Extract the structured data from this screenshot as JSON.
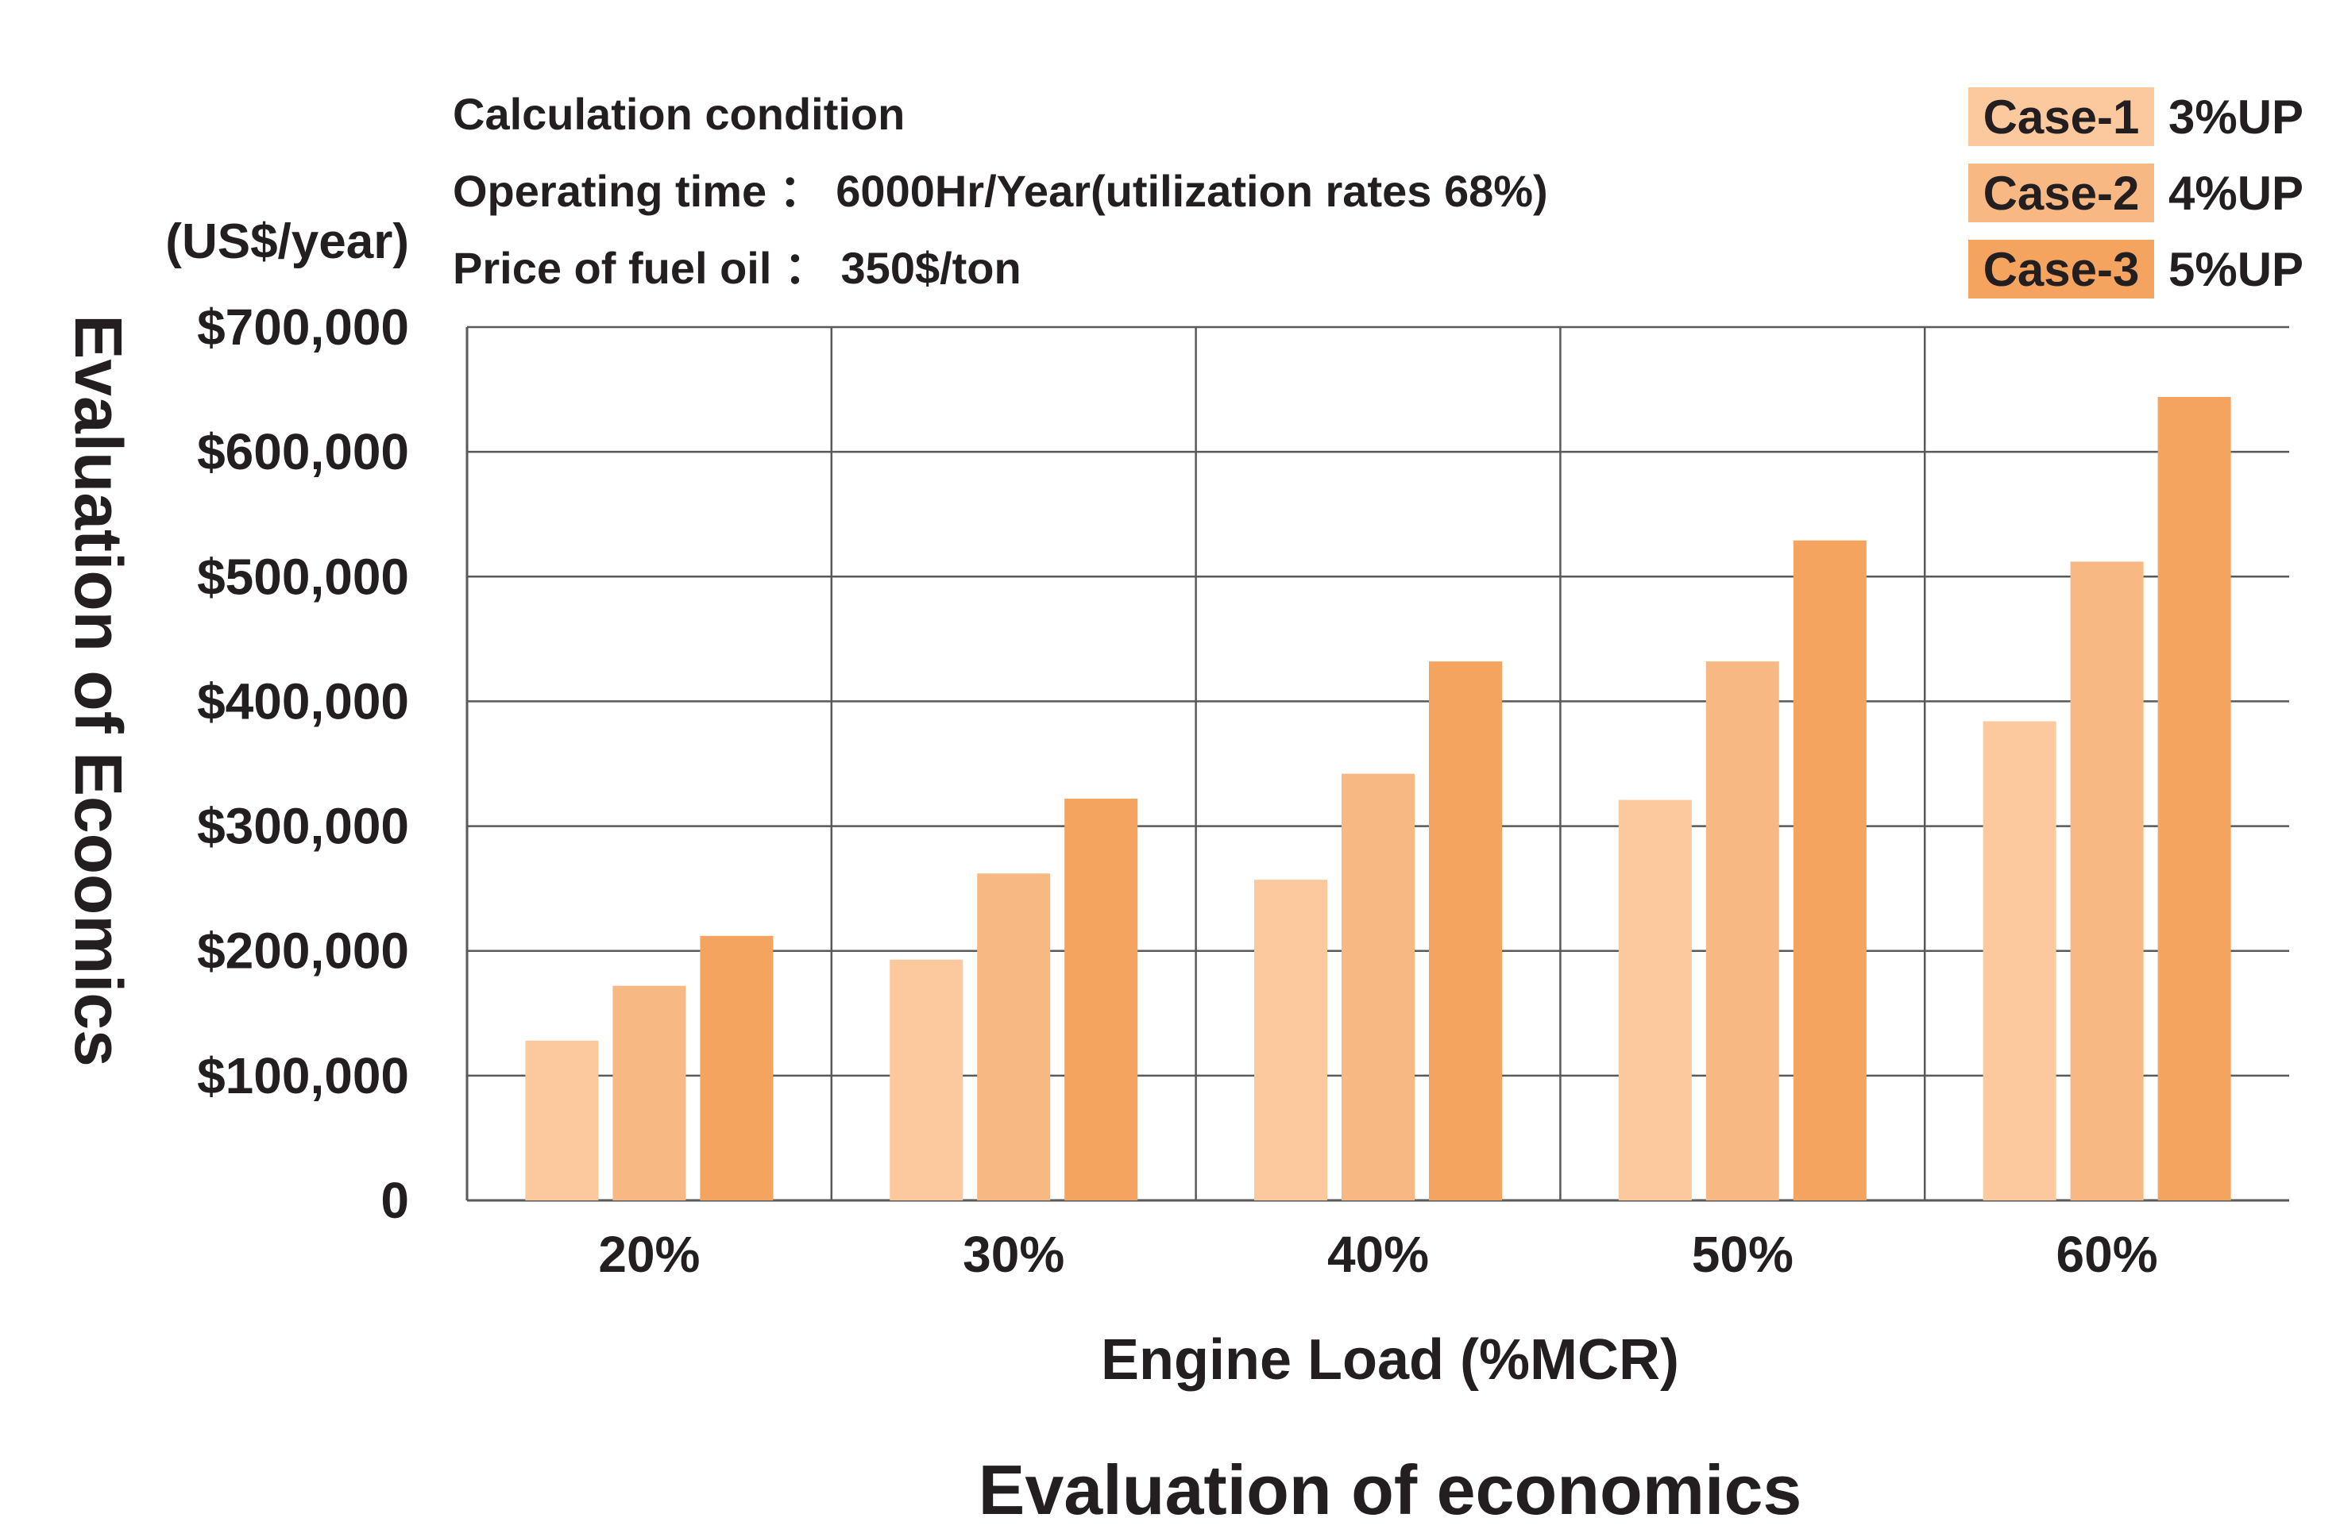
{
  "chart_data": {
    "type": "bar",
    "title": "Evaluation of economics",
    "ylabel": "Evaluation of Ecoomics",
    "xlabel": "Engine Load (%MCR)",
    "unit_label": "(US$/year)",
    "conditions": [
      "Calculation condition",
      "Operating time ： 6000Hr/Year(utilization rates 68%)",
      "Price of fuel oil ： 350$/ton"
    ],
    "categories": [
      "20%",
      "30%",
      "40%",
      "50%",
      "60%"
    ],
    "series": [
      {
        "name": "Case-1",
        "note": "3%UP",
        "color": "#fbc99d",
        "values": [
          128000,
          193000,
          257000,
          321000,
          384000
        ]
      },
      {
        "name": "Case-2",
        "note": "4%UP",
        "color": "#f8b884",
        "values": [
          172000,
          262000,
          342000,
          432000,
          512000
        ]
      },
      {
        "name": "Case-3",
        "note": "5%UP",
        "color": "#f5a460",
        "values": [
          212000,
          322000,
          432000,
          529000,
          644000
        ]
      }
    ],
    "ylim": [
      0,
      700000
    ],
    "yticks": [
      0,
      100000,
      200000,
      300000,
      400000,
      500000,
      600000,
      700000
    ],
    "ytick_labels": [
      "0",
      "$100,000",
      "$200,000",
      "$300,000",
      "$400,000",
      "$500,000",
      "$600,000",
      "$700,000"
    ],
    "grid": true,
    "legend_position": "top-right",
    "colors": {
      "grid": "#58595b",
      "text": "#231f20"
    }
  }
}
